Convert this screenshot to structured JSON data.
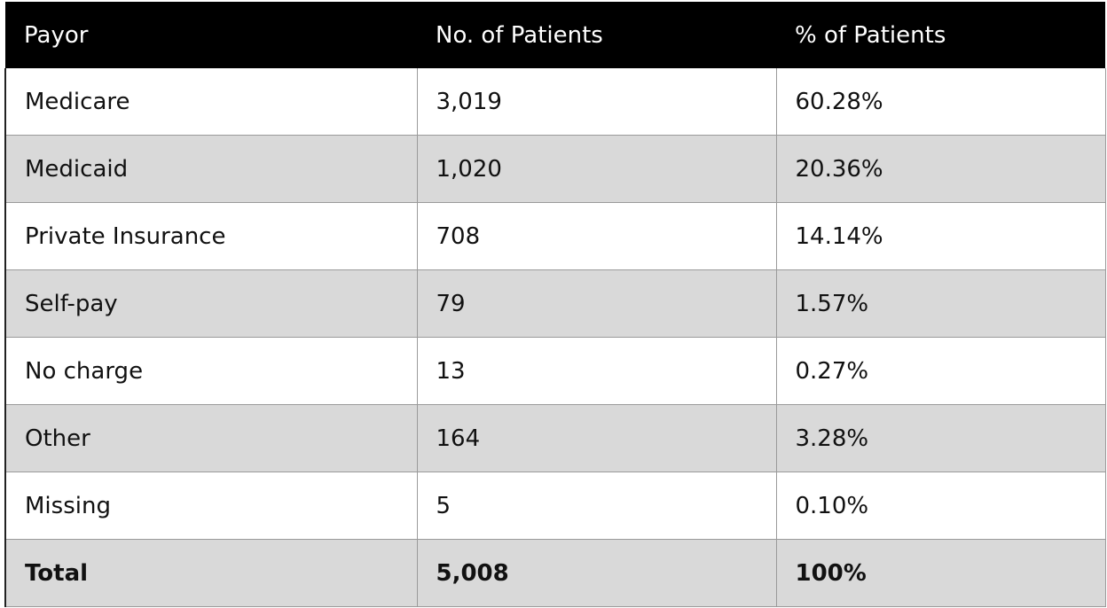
{
  "table": {
    "headers": [
      "Payor",
      "No. of Patients",
      "% of Patients"
    ],
    "rows": [
      {
        "payor": "Medicare",
        "count": "3,019",
        "percent": "60.28%"
      },
      {
        "payor": "Medicaid",
        "count": "1,020",
        "percent": "20.36%"
      },
      {
        "payor": "Private Insurance",
        "count": "708",
        "percent": "14.14%"
      },
      {
        "payor": "Self-pay",
        "count": "79",
        "percent": "1.57%"
      },
      {
        "payor": "No charge",
        "count": "13",
        "percent": "0.27%"
      },
      {
        "payor": "Other",
        "count": "164",
        "percent": "3.28%"
      },
      {
        "payor": "Missing",
        "count": "5",
        "percent": "0.10%"
      }
    ],
    "total": {
      "payor": "Total",
      "count": "5,008",
      "percent": "100%"
    }
  },
  "colors": {
    "header_bg": "#000000",
    "header_text": "#ffffff",
    "stripe": "#d9d9d9"
  }
}
